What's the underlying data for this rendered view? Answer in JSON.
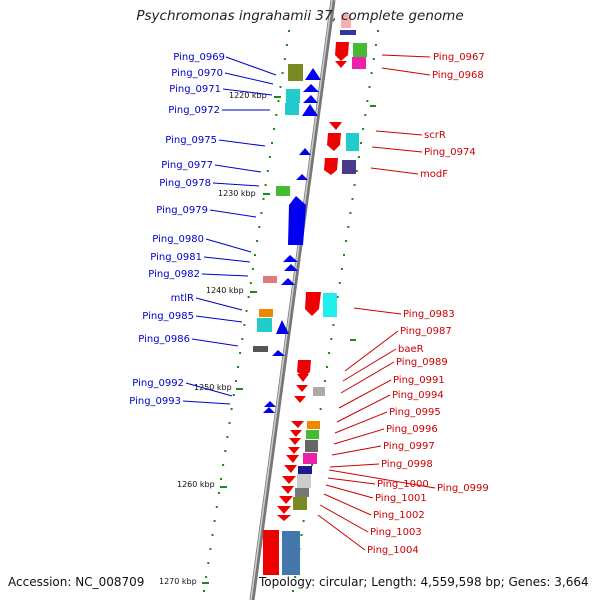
{
  "title": "Psychromonas ingrahamii 37, complete genome",
  "footer": {
    "accession": "Accession: NC_008709",
    "summary": "Topology: circular; Length: 4,559,598 bp; Genes: 3,664"
  },
  "colors": {
    "left_label": "#0000cc",
    "right_label": "#cc0000",
    "backbone": "#888888",
    "tick": "#1a8a1a"
  },
  "scale_labels": [
    "1220 kbp",
    "1230 kbp",
    "1240 kbp",
    "1250 kbp",
    "1260 kbp",
    "1270 kbp"
  ],
  "left_genes": [
    "Ping_0969",
    "Ping_0970",
    "Ping_0971",
    "Ping_0972",
    "Ping_0975",
    "Ping_0977",
    "Ping_0978",
    "Ping_0979",
    "Ping_0980",
    "Ping_0981",
    "Ping_0982",
    "mtlR",
    "Ping_0985",
    "Ping_0986",
    "Ping_0992",
    "Ping_0993"
  ],
  "right_genes": [
    "Ping_0967",
    "Ping_0968",
    "scrR",
    "Ping_0974",
    "modF",
    "Ping_0983",
    "Ping_0987",
    "baeR",
    "Ping_0989",
    "Ping_0991",
    "Ping_0994",
    "Ping_0995",
    "Ping_0996",
    "Ping_0997",
    "Ping_0998",
    "Ping_0999",
    "Ping_1000",
    "Ping_1001",
    "Ping_1002",
    "Ping_1003",
    "Ping_1004"
  ]
}
